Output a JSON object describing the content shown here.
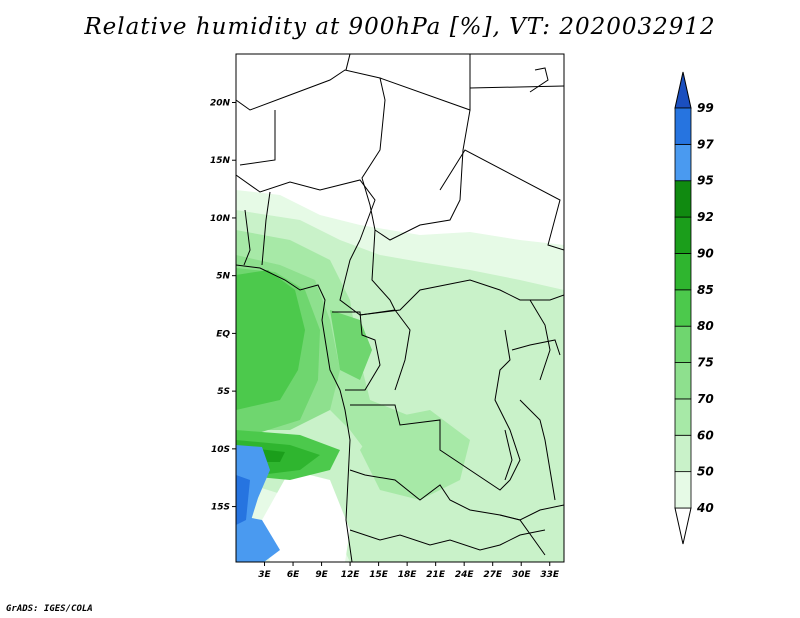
{
  "title": "Relative humidity at 900hPa [%], VT: 2020032912",
  "credit": "GrADS: IGES/COLA",
  "map": {
    "lon_range": [
      0,
      34.5
    ],
    "lat_range": [
      -19.8,
      24.2
    ],
    "lat_ticks": [
      {
        "value": 20,
        "label": "20N"
      },
      {
        "value": 15,
        "label": "15N"
      },
      {
        "value": 10,
        "label": "10N"
      },
      {
        "value": 5,
        "label": "5N"
      },
      {
        "value": 0,
        "label": "EQ"
      },
      {
        "value": -5,
        "label": "5S"
      },
      {
        "value": -10,
        "label": "10S"
      },
      {
        "value": -15,
        "label": "15S"
      }
    ],
    "lon_ticks": [
      {
        "value": 3,
        "label": "3E"
      },
      {
        "value": 6,
        "label": "6E"
      },
      {
        "value": 9,
        "label": "9E"
      },
      {
        "value": 12,
        "label": "12E"
      },
      {
        "value": 15,
        "label": "15E"
      },
      {
        "value": 18,
        "label": "18E"
      },
      {
        "value": 21,
        "label": "21E"
      },
      {
        "value": 24,
        "label": "24E"
      },
      {
        "value": 27,
        "label": "27E"
      },
      {
        "value": 30,
        "label": "30E"
      },
      {
        "value": 33,
        "label": "33E"
      }
    ]
  },
  "colorbar": {
    "levels": [
      "40",
      "50",
      "60",
      "70",
      "75",
      "80",
      "85",
      "90",
      "92",
      "95",
      "97",
      "99"
    ],
    "colors": [
      "#ffffff",
      "#e6fae6",
      "#c9f2c9",
      "#a7e9a7",
      "#8ee08e",
      "#6fd66f",
      "#4cc94c",
      "#2fb52f",
      "#1b9e1b",
      "#108a10",
      "#4a9af0",
      "#2674e0",
      "#1b4fbf"
    ]
  }
}
